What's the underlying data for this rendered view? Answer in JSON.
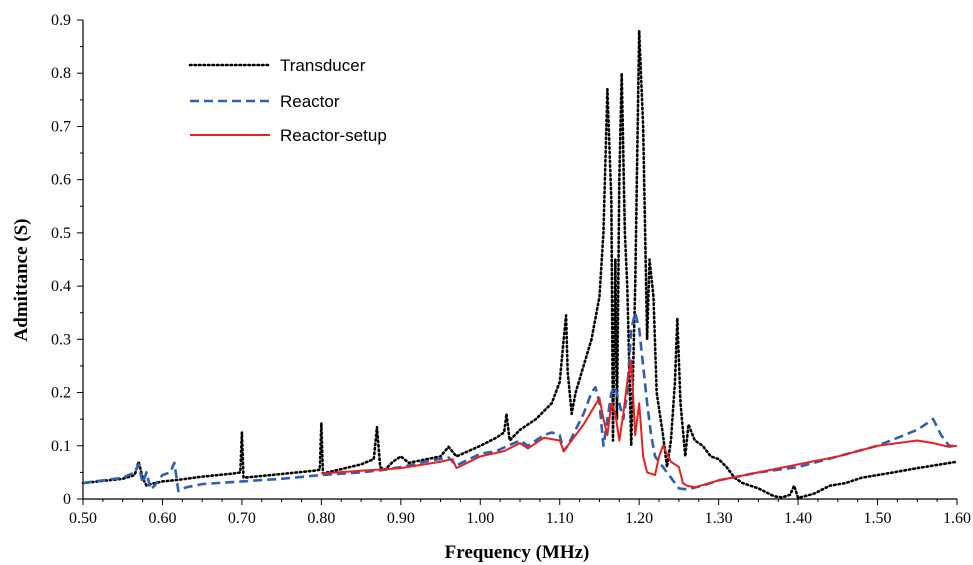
{
  "chart_data": {
    "type": "line",
    "title": "",
    "xlabel": "Frequency (MHz)",
    "ylabel": "Admittance (S)",
    "xlim": [
      0.5,
      1.6
    ],
    "ylim": [
      0,
      0.9
    ],
    "x_ticks": [
      "0.50",
      "0.60",
      "0.70",
      "0.80",
      "0.90",
      "1.00",
      "1.10",
      "1.20",
      "1.30",
      "1.40",
      "1.50",
      "1.60"
    ],
    "y_ticks": [
      "0",
      "0.1",
      "0.2",
      "0.3",
      "0.4",
      "0.5",
      "0.6",
      "0.7",
      "0.8",
      "0.9"
    ],
    "grid": false,
    "legend_position": "top-left",
    "series": [
      {
        "name": "Transducer",
        "color": "#000000",
        "style": "dotted",
        "points": [
          [
            0.5,
            0.03
          ],
          [
            0.55,
            0.038
          ],
          [
            0.565,
            0.045
          ],
          [
            0.57,
            0.07
          ],
          [
            0.575,
            0.04
          ],
          [
            0.58,
            0.025
          ],
          [
            0.585,
            0.028
          ],
          [
            0.6,
            0.033
          ],
          [
            0.62,
            0.036
          ],
          [
            0.65,
            0.042
          ],
          [
            0.69,
            0.048
          ],
          [
            0.698,
            0.05
          ],
          [
            0.7,
            0.125
          ],
          [
            0.702,
            0.04
          ],
          [
            0.75,
            0.047
          ],
          [
            0.79,
            0.053
          ],
          [
            0.798,
            0.055
          ],
          [
            0.8,
            0.143
          ],
          [
            0.802,
            0.048
          ],
          [
            0.85,
            0.065
          ],
          [
            0.866,
            0.075
          ],
          [
            0.87,
            0.135
          ],
          [
            0.874,
            0.06
          ],
          [
            0.88,
            0.055
          ],
          [
            0.89,
            0.07
          ],
          [
            0.9,
            0.08
          ],
          [
            0.91,
            0.068
          ],
          [
            0.95,
            0.08
          ],
          [
            0.96,
            0.098
          ],
          [
            0.97,
            0.08
          ],
          [
            1.0,
            0.1
          ],
          [
            1.02,
            0.115
          ],
          [
            1.03,
            0.125
          ],
          [
            1.033,
            0.16
          ],
          [
            1.037,
            0.11
          ],
          [
            1.05,
            0.13
          ],
          [
            1.07,
            0.15
          ],
          [
            1.09,
            0.18
          ],
          [
            1.1,
            0.22
          ],
          [
            1.105,
            0.3
          ],
          [
            1.108,
            0.345
          ],
          [
            1.11,
            0.24
          ],
          [
            1.115,
            0.16
          ],
          [
            1.12,
            0.2
          ],
          [
            1.13,
            0.25
          ],
          [
            1.14,
            0.3
          ],
          [
            1.15,
            0.38
          ],
          [
            1.155,
            0.5
          ],
          [
            1.16,
            0.77
          ],
          [
            1.165,
            0.56
          ],
          [
            1.167,
            0.11
          ],
          [
            1.17,
            0.45
          ],
          [
            1.172,
            0.15
          ],
          [
            1.175,
            0.6
          ],
          [
            1.178,
            0.8
          ],
          [
            1.182,
            0.5
          ],
          [
            1.185,
            0.4
          ],
          [
            1.19,
            0.1
          ],
          [
            1.195,
            0.4
          ],
          [
            1.2,
            0.88
          ],
          [
            1.205,
            0.7
          ],
          [
            1.21,
            0.3
          ],
          [
            1.213,
            0.45
          ],
          [
            1.218,
            0.38
          ],
          [
            1.222,
            0.2
          ],
          [
            1.23,
            0.12
          ],
          [
            1.235,
            0.06
          ],
          [
            1.24,
            0.11
          ],
          [
            1.245,
            0.22
          ],
          [
            1.248,
            0.34
          ],
          [
            1.252,
            0.18
          ],
          [
            1.258,
            0.08
          ],
          [
            1.262,
            0.14
          ],
          [
            1.27,
            0.11
          ],
          [
            1.28,
            0.1
          ],
          [
            1.29,
            0.08
          ],
          [
            1.3,
            0.075
          ],
          [
            1.31,
            0.06
          ],
          [
            1.32,
            0.04
          ],
          [
            1.33,
            0.03
          ],
          [
            1.35,
            0.02
          ],
          [
            1.37,
            0.005
          ],
          [
            1.38,
            0.003
          ],
          [
            1.39,
            0.008
          ],
          [
            1.395,
            0.025
          ],
          [
            1.4,
            0.002
          ],
          [
            1.42,
            0.01
          ],
          [
            1.44,
            0.025
          ],
          [
            1.46,
            0.03
          ],
          [
            1.48,
            0.04
          ],
          [
            1.5,
            0.045
          ],
          [
            1.52,
            0.05
          ],
          [
            1.55,
            0.058
          ],
          [
            1.6,
            0.07
          ]
        ]
      },
      {
        "name": "Reactor",
        "color": "#2f5fb3",
        "style": "dashed",
        "points": [
          [
            0.5,
            0.03
          ],
          [
            0.55,
            0.04
          ],
          [
            0.565,
            0.05
          ],
          [
            0.57,
            0.065
          ],
          [
            0.575,
            0.03
          ],
          [
            0.58,
            0.05
          ],
          [
            0.585,
            0.018
          ],
          [
            0.59,
            0.025
          ],
          [
            0.6,
            0.045
          ],
          [
            0.61,
            0.05
          ],
          [
            0.615,
            0.068
          ],
          [
            0.62,
            0.015
          ],
          [
            0.63,
            0.022
          ],
          [
            0.65,
            0.028
          ],
          [
            0.7,
            0.033
          ],
          [
            0.75,
            0.038
          ],
          [
            0.8,
            0.045
          ],
          [
            0.85,
            0.05
          ],
          [
            0.88,
            0.055
          ],
          [
            0.9,
            0.06
          ],
          [
            0.93,
            0.07
          ],
          [
            0.96,
            0.078
          ],
          [
            0.97,
            0.063
          ],
          [
            1.0,
            0.085
          ],
          [
            1.02,
            0.09
          ],
          [
            1.05,
            0.11
          ],
          [
            1.06,
            0.1
          ],
          [
            1.08,
            0.12
          ],
          [
            1.09,
            0.125
          ],
          [
            1.1,
            0.12
          ],
          [
            1.105,
            0.09
          ],
          [
            1.11,
            0.1
          ],
          [
            1.12,
            0.13
          ],
          [
            1.13,
            0.16
          ],
          [
            1.14,
            0.2
          ],
          [
            1.145,
            0.21
          ],
          [
            1.15,
            0.18
          ],
          [
            1.155,
            0.1
          ],
          [
            1.16,
            0.15
          ],
          [
            1.165,
            0.2
          ],
          [
            1.17,
            0.21
          ],
          [
            1.175,
            0.18
          ],
          [
            1.18,
            0.15
          ],
          [
            1.185,
            0.2
          ],
          [
            1.19,
            0.32
          ],
          [
            1.195,
            0.35
          ],
          [
            1.2,
            0.32
          ],
          [
            1.205,
            0.25
          ],
          [
            1.21,
            0.18
          ],
          [
            1.215,
            0.12
          ],
          [
            1.22,
            0.08
          ],
          [
            1.23,
            0.06
          ],
          [
            1.24,
            0.04
          ],
          [
            1.25,
            0.02
          ],
          [
            1.26,
            0.018
          ],
          [
            1.28,
            0.025
          ],
          [
            1.3,
            0.035
          ],
          [
            1.35,
            0.05
          ],
          [
            1.4,
            0.06
          ],
          [
            1.45,
            0.08
          ],
          [
            1.5,
            0.1
          ],
          [
            1.55,
            0.13
          ],
          [
            1.57,
            0.15
          ],
          [
            1.58,
            0.12
          ],
          [
            1.59,
            0.1
          ],
          [
            1.6,
            0.1
          ]
        ]
      },
      {
        "name": "Reactor-setup",
        "color": "#e8201f",
        "style": "solid",
        "points": [
          [
            0.8,
            0.048
          ],
          [
            0.85,
            0.053
          ],
          [
            0.9,
            0.058
          ],
          [
            0.95,
            0.07
          ],
          [
            0.965,
            0.075
          ],
          [
            0.97,
            0.058
          ],
          [
            1.0,
            0.08
          ],
          [
            1.03,
            0.09
          ],
          [
            1.05,
            0.105
          ],
          [
            1.06,
            0.095
          ],
          [
            1.08,
            0.115
          ],
          [
            1.1,
            0.11
          ],
          [
            1.105,
            0.09
          ],
          [
            1.11,
            0.1
          ],
          [
            1.13,
            0.14
          ],
          [
            1.15,
            0.19
          ],
          [
            1.155,
            0.15
          ],
          [
            1.16,
            0.12
          ],
          [
            1.165,
            0.18
          ],
          [
            1.17,
            0.16
          ],
          [
            1.175,
            0.11
          ],
          [
            1.18,
            0.16
          ],
          [
            1.185,
            0.22
          ],
          [
            1.19,
            0.26
          ],
          [
            1.195,
            0.12
          ],
          [
            1.2,
            0.18
          ],
          [
            1.205,
            0.08
          ],
          [
            1.21,
            0.05
          ],
          [
            1.22,
            0.045
          ],
          [
            1.225,
            0.08
          ],
          [
            1.23,
            0.1
          ],
          [
            1.24,
            0.07
          ],
          [
            1.25,
            0.06
          ],
          [
            1.255,
            0.03
          ],
          [
            1.26,
            0.025
          ],
          [
            1.27,
            0.022
          ],
          [
            1.3,
            0.035
          ],
          [
            1.35,
            0.05
          ],
          [
            1.4,
            0.065
          ],
          [
            1.45,
            0.08
          ],
          [
            1.5,
            0.1
          ],
          [
            1.55,
            0.11
          ],
          [
            1.57,
            0.105
          ],
          [
            1.59,
            0.098
          ],
          [
            1.6,
            0.1
          ]
        ]
      }
    ]
  }
}
